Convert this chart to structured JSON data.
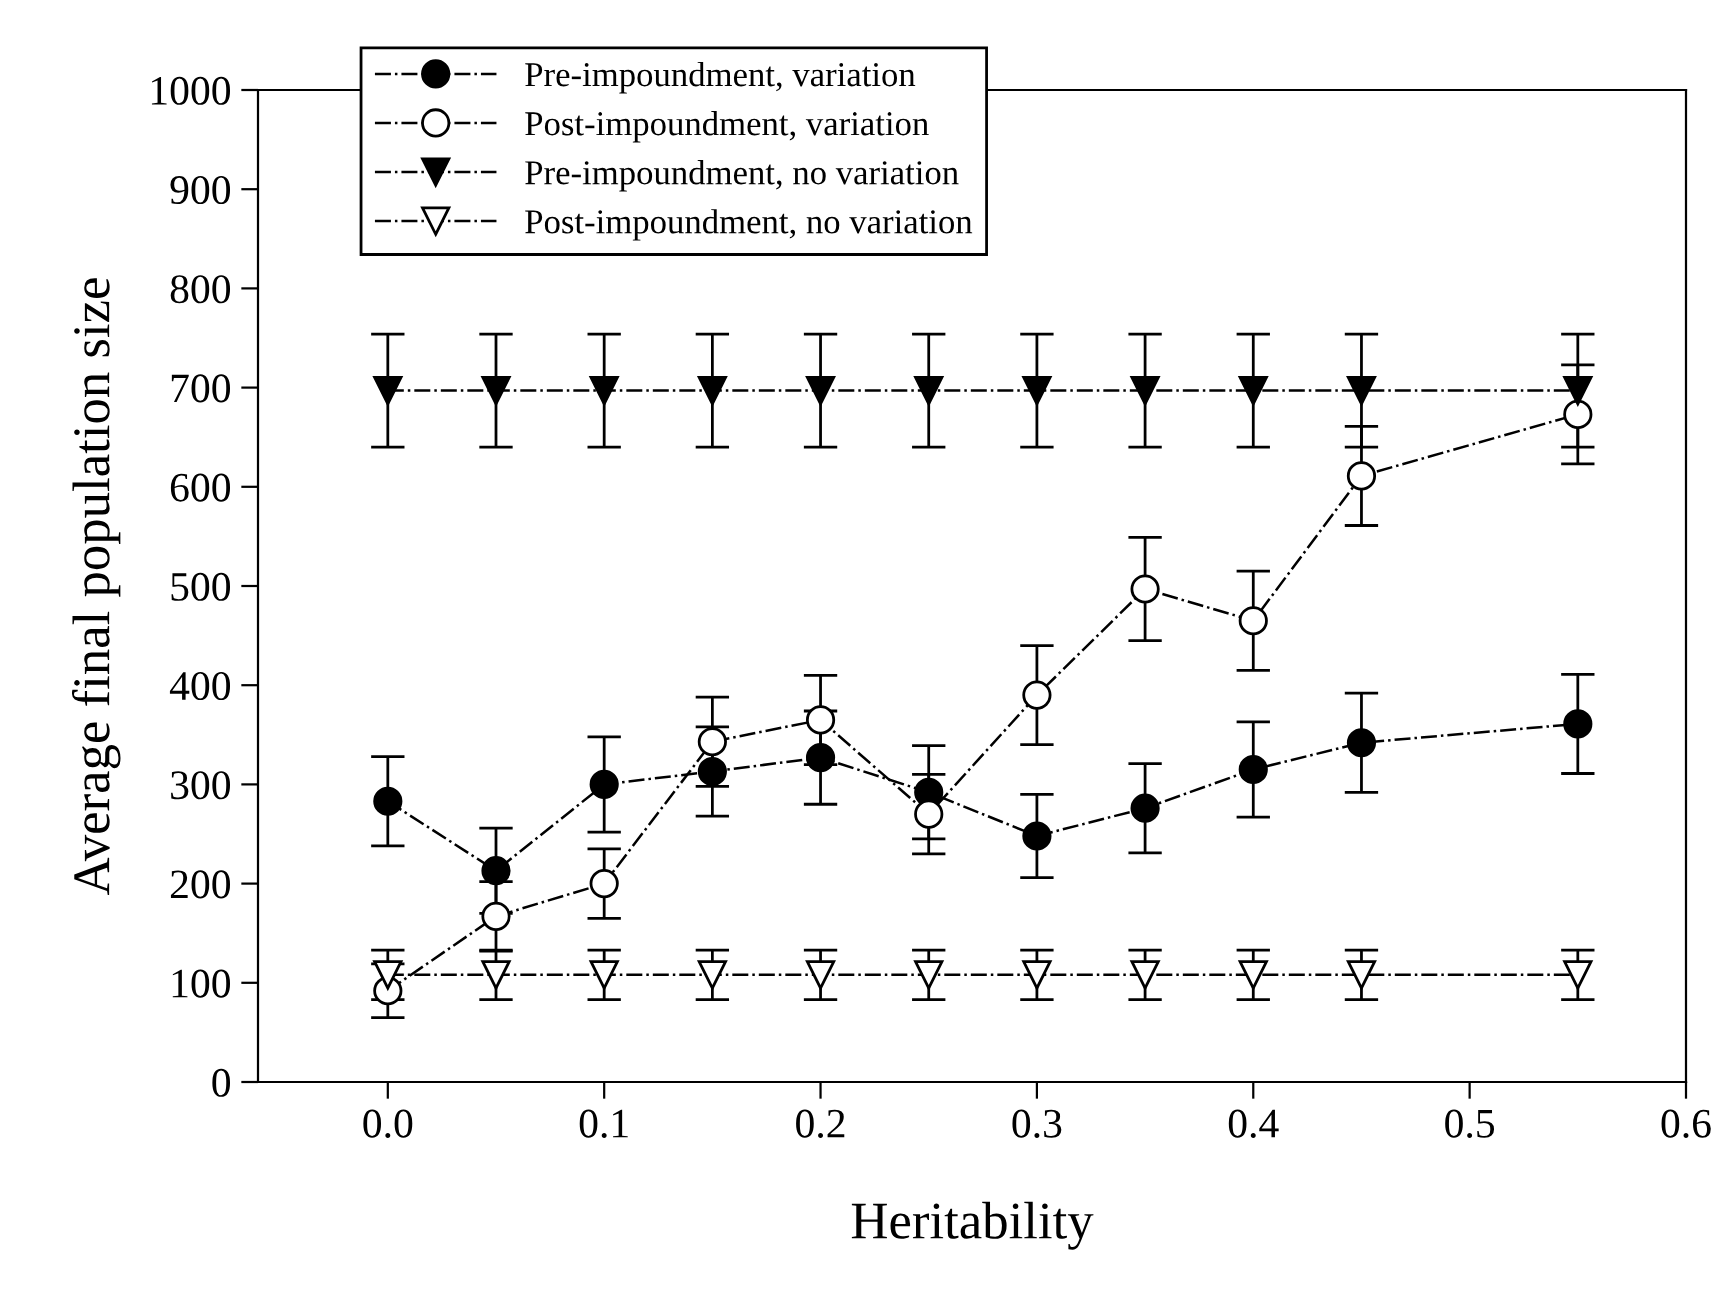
{
  "chart_data": {
    "type": "line",
    "xlabel": "Heritability",
    "ylabel": "Average final population size",
    "x": [
      0.0,
      0.05,
      0.1,
      0.15,
      0.2,
      0.25,
      0.3,
      0.35,
      0.4,
      0.45,
      0.55
    ],
    "series": [
      {
        "name": "Pre-impoundment, variation",
        "color": "#000000",
        "marker": "circle",
        "values": [
          283,
          213,
          300,
          313,
          327,
          292,
          248,
          276,
          315,
          342,
          361
        ],
        "errors": [
          45,
          43,
          48,
          45,
          47,
          47,
          42,
          45,
          48,
          50,
          50
        ]
      },
      {
        "name": "Post-impoundment, variation",
        "color": "#ffffff",
        "marker": "circle",
        "values": [
          92,
          167,
          200,
          343,
          365,
          270,
          390,
          497,
          465,
          611,
          673
        ],
        "errors": [
          27,
          35,
          35,
          45,
          45,
          40,
          50,
          52,
          50,
          50,
          50
        ]
      },
      {
        "name": "Pre-impoundment, no variation",
        "color": "#000000",
        "marker": "triangle",
        "values": [
          697,
          697,
          697,
          697,
          697,
          697,
          697,
          697,
          697,
          697,
          697
        ],
        "errors": [
          57,
          57,
          57,
          57,
          57,
          57,
          57,
          57,
          57,
          57,
          57
        ]
      },
      {
        "name": "Post-impoundment, no variation",
        "color": "#ffffff",
        "marker": "triangle",
        "values": [
          108,
          108,
          108,
          108,
          108,
          108,
          108,
          108,
          108,
          108,
          108
        ],
        "errors": [
          25,
          25,
          25,
          25,
          25,
          25,
          25,
          25,
          25,
          25,
          25
        ]
      }
    ],
    "xlim": [
      -0.06,
      0.6
    ],
    "xticks": [
      {
        "value": 0.0,
        "label": "0.0"
      },
      0.1,
      0.2,
      0.3,
      0.4,
      0.5,
      0.6
    ],
    "ylim": [
      0,
      1000
    ],
    "yticks": [
      0,
      100,
      200,
      300,
      400,
      500,
      600,
      700,
      800,
      900,
      1000
    ],
    "line_style": "dashdot",
    "grid": false,
    "legend": "top left"
  }
}
